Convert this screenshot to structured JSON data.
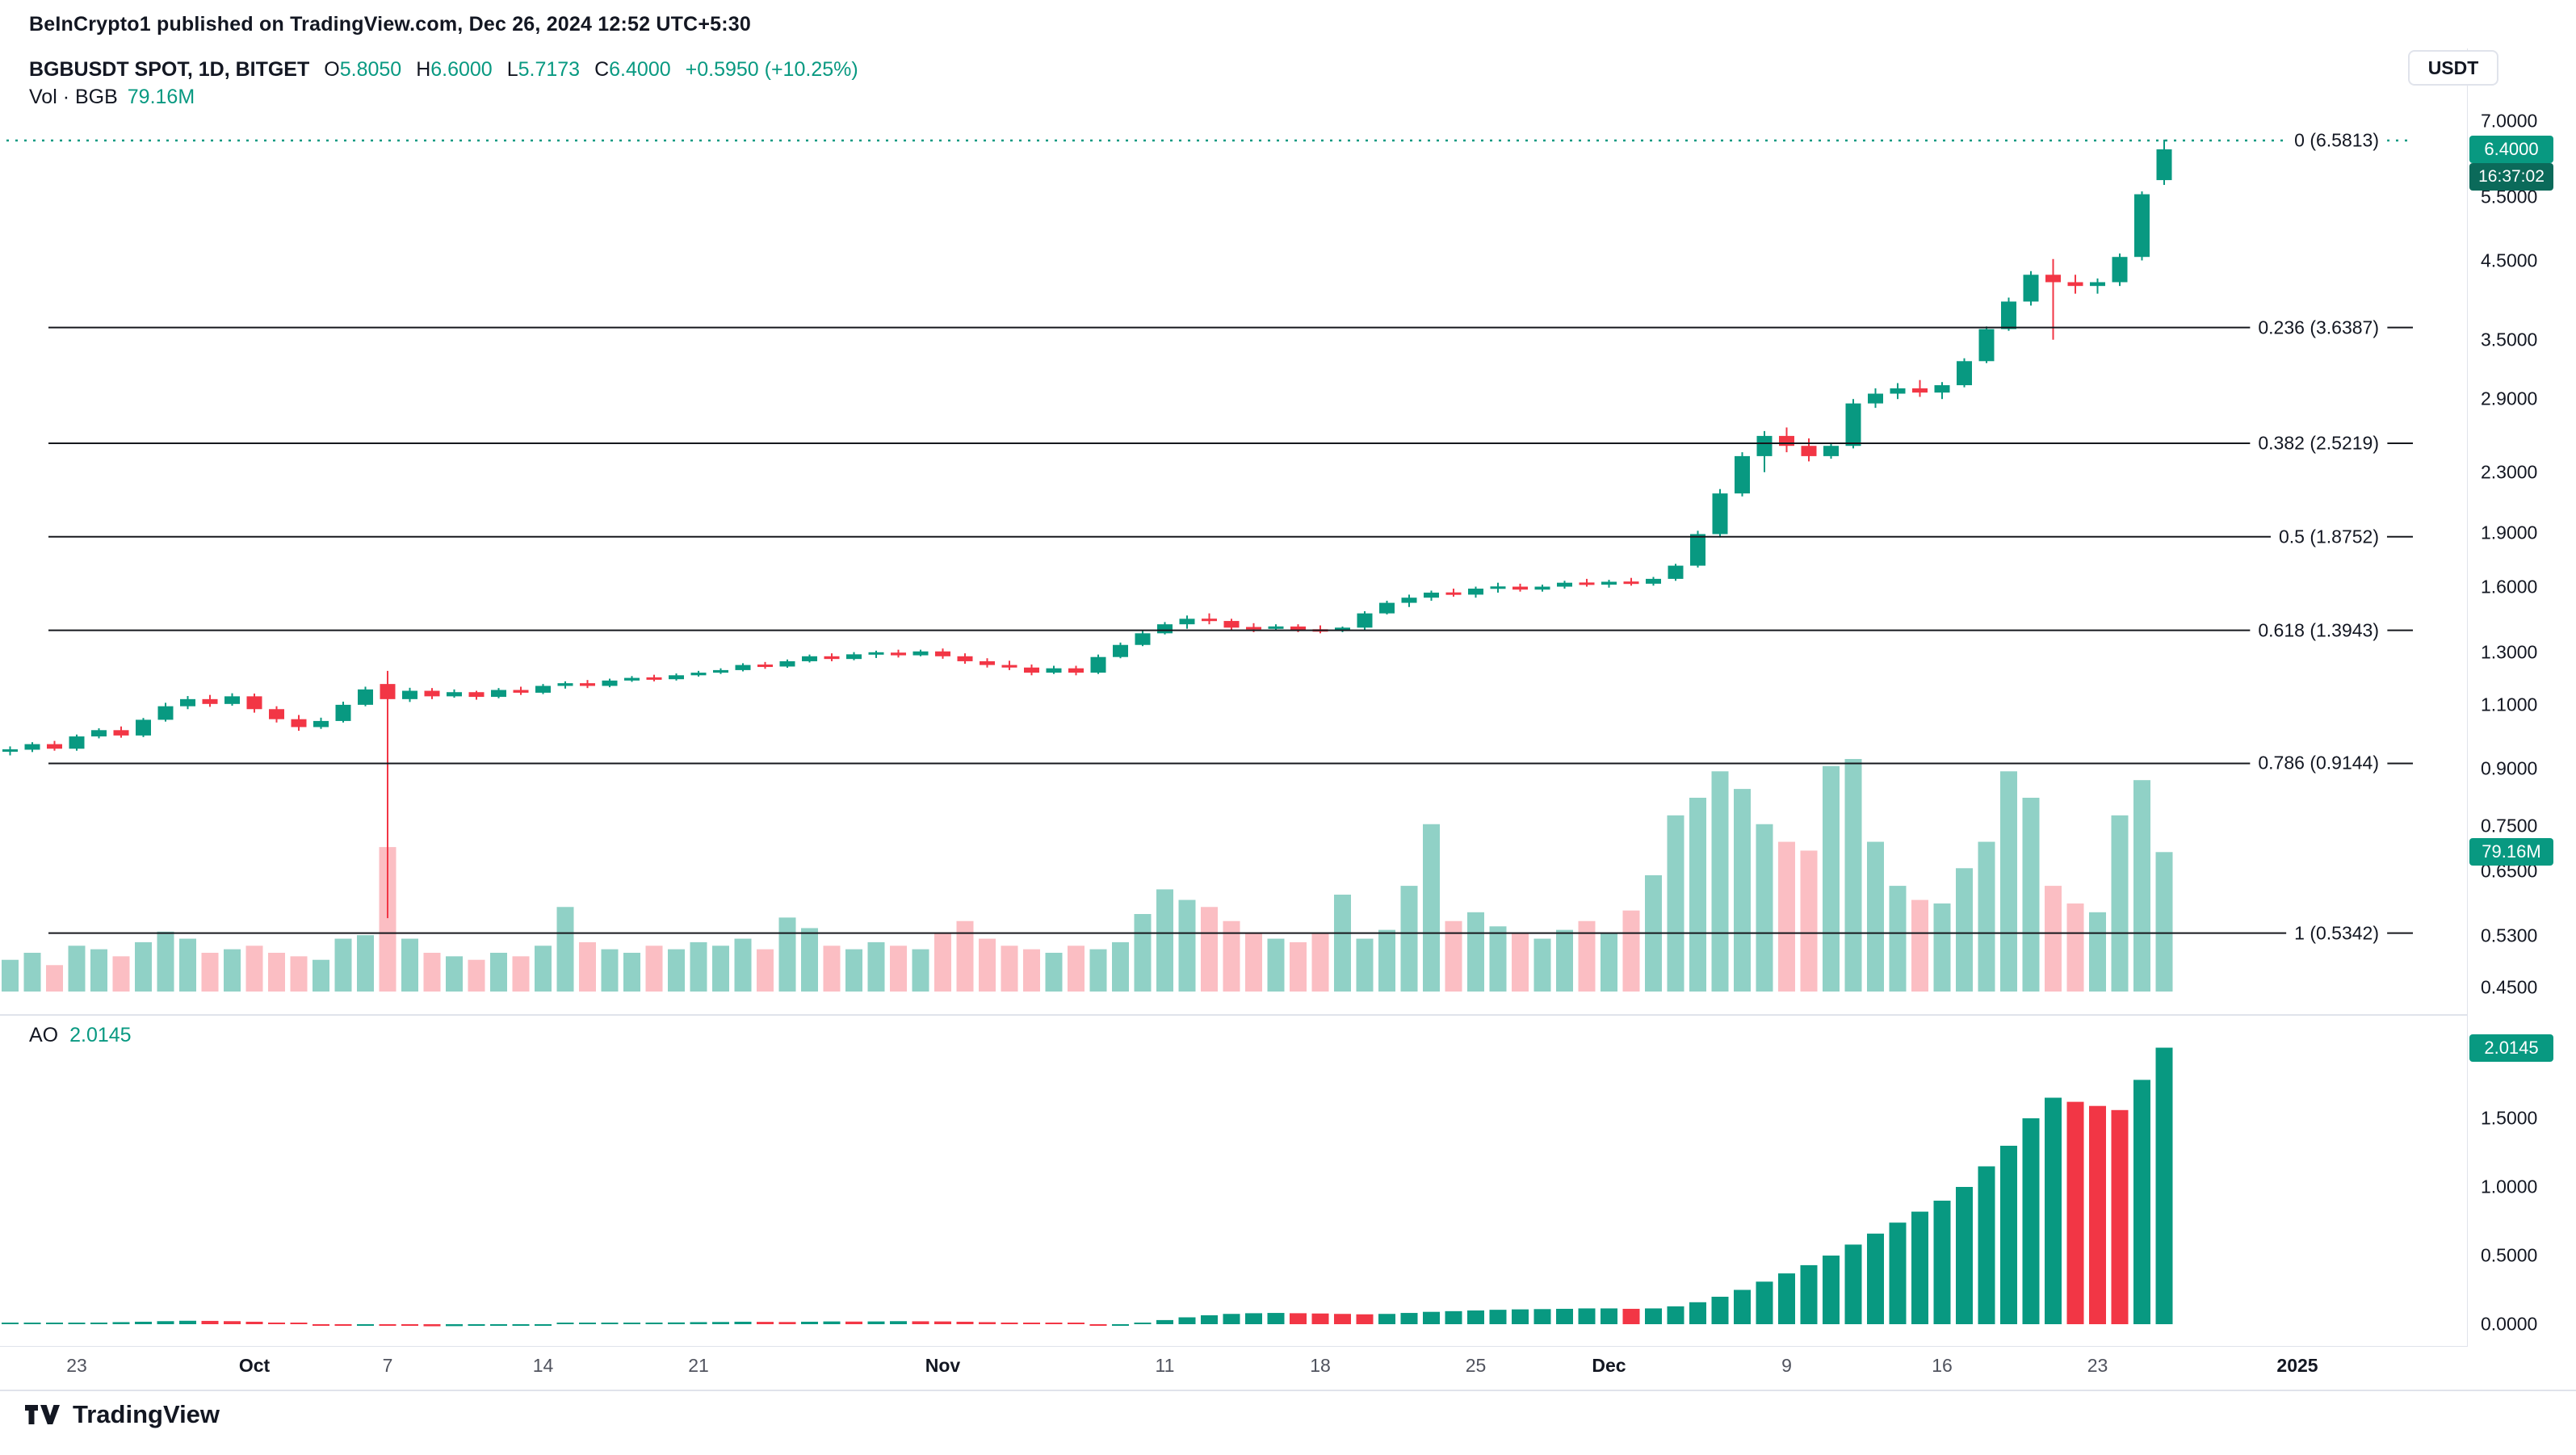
{
  "page": {
    "attribution": "BeInCrypto1 published on TradingView.com, Dec 26, 2024 12:52 UTC+5:30",
    "currency_button": "USDT",
    "footer_brand": "TradingView"
  },
  "legend": {
    "symbol_title": "BGBUSDT SPOT, 1D, BITGET",
    "ohlc": [
      {
        "label": "O",
        "value": "5.8050"
      },
      {
        "label": "H",
        "value": "6.6000"
      },
      {
        "label": "L",
        "value": "5.7173"
      },
      {
        "label": "C",
        "value": "6.4000"
      }
    ],
    "change": "+0.5950 (+10.25%)",
    "volume_label": "Vol · BGB",
    "volume_value": "79.16M",
    "ao_label": "AO",
    "ao_value": "2.0145"
  },
  "badges": {
    "last_price": "6.4000",
    "countdown": "16:37:02",
    "volume": "79.16M",
    "ao": "2.0145"
  },
  "colors": {
    "up": "#089981",
    "down": "#f23645",
    "volume_up": "rgba(8,153,129,0.45)",
    "volume_down": "rgba(242,54,69,0.32)",
    "fib_line": "#16181d",
    "countdown_bg": "#0b6a5a",
    "axis_text": "#131722",
    "separator": "#e0e3eb"
  },
  "chart_data": {
    "type": "candlestick",
    "symbol": "BGBUSDT",
    "market": "SPOT",
    "interval": "1D",
    "exchange": "BITGET",
    "price_scale": "log",
    "price_axis_range": [
      0.42,
      7.3
    ],
    "ao_axis_range": [
      -0.1,
      2.2
    ],
    "legend_position": "top-left",
    "grid": false,
    "candles": [
      [
        "2024-09-20",
        0.95,
        0.965,
        0.938,
        0.955
      ],
      [
        "2024-09-21",
        0.955,
        0.978,
        0.948,
        0.972
      ],
      [
        "2024-09-22",
        0.972,
        0.982,
        0.952,
        0.958
      ],
      [
        "2024-09-23",
        0.958,
        1.002,
        0.952,
        0.996
      ],
      [
        "2024-09-24",
        0.996,
        1.022,
        0.99,
        1.016
      ],
      [
        "2024-09-25",
        1.016,
        1.028,
        0.992,
        0.999
      ],
      [
        "2024-09-26",
        0.999,
        1.056,
        0.994,
        1.05
      ],
      [
        "2024-09-27",
        1.05,
        1.108,
        1.044,
        1.096
      ],
      [
        "2024-09-28",
        1.096,
        1.132,
        1.086,
        1.121
      ],
      [
        "2024-09-29",
        1.121,
        1.136,
        1.094,
        1.104
      ],
      [
        "2024-09-30",
        1.104,
        1.142,
        1.098,
        1.131
      ],
      [
        "2024-10-01",
        1.131,
        1.141,
        1.074,
        1.086
      ],
      [
        "2024-10-02",
        1.086,
        1.096,
        1.041,
        1.052
      ],
      [
        "2024-10-03",
        1.052,
        1.066,
        1.014,
        1.026
      ],
      [
        "2024-10-04",
        1.026,
        1.057,
        1.02,
        1.046
      ],
      [
        "2024-10-05",
        1.046,
        1.112,
        1.041,
        1.101
      ],
      [
        "2024-10-06",
        1.101,
        1.166,
        1.096,
        1.156
      ],
      [
        "2024-10-07",
        1.176,
        1.226,
        0.56,
        1.121
      ],
      [
        "2024-10-08",
        1.121,
        1.162,
        1.111,
        1.151
      ],
      [
        "2024-10-09",
        1.151,
        1.161,
        1.121,
        1.131
      ],
      [
        "2024-10-10",
        1.131,
        1.156,
        1.126,
        1.146
      ],
      [
        "2024-10-11",
        1.146,
        1.151,
        1.119,
        1.129
      ],
      [
        "2024-10-12",
        1.129,
        1.161,
        1.124,
        1.154
      ],
      [
        "2024-10-13",
        1.154,
        1.166,
        1.136,
        1.144
      ],
      [
        "2024-10-14",
        1.144,
        1.176,
        1.139,
        1.169
      ],
      [
        "2024-10-15",
        1.169,
        1.186,
        1.159,
        1.179
      ],
      [
        "2024-10-16",
        1.179,
        1.191,
        1.161,
        1.169
      ],
      [
        "2024-10-17",
        1.169,
        1.196,
        1.164,
        1.189
      ],
      [
        "2024-10-18",
        1.189,
        1.206,
        1.184,
        1.199
      ],
      [
        "2024-10-19",
        1.199,
        1.211,
        1.186,
        1.194
      ],
      [
        "2024-10-20",
        1.194,
        1.216,
        1.189,
        1.209
      ],
      [
        "2024-10-21",
        1.209,
        1.226,
        1.204,
        1.219
      ],
      [
        "2024-10-22",
        1.219,
        1.236,
        1.214,
        1.229
      ],
      [
        "2024-10-23",
        1.229,
        1.256,
        1.224,
        1.249
      ],
      [
        "2024-10-24",
        1.249,
        1.261,
        1.234,
        1.243
      ],
      [
        "2024-10-25",
        1.243,
        1.271,
        1.238,
        1.264
      ],
      [
        "2024-10-26",
        1.264,
        1.291,
        1.259,
        1.284
      ],
      [
        "2024-10-27",
        1.284,
        1.296,
        1.264,
        1.273
      ],
      [
        "2024-10-28",
        1.273,
        1.301,
        1.268,
        1.292
      ],
      [
        "2024-10-29",
        1.292,
        1.307,
        1.277,
        1.299
      ],
      [
        "2024-10-30",
        1.299,
        1.311,
        1.279,
        1.288
      ],
      [
        "2024-10-31",
        1.288,
        1.311,
        1.284,
        1.304
      ],
      [
        "2024-11-01",
        1.304,
        1.316,
        1.274,
        1.284
      ],
      [
        "2024-11-02",
        1.284,
        1.296,
        1.254,
        1.264
      ],
      [
        "2024-11-03",
        1.264,
        1.276,
        1.239,
        1.249
      ],
      [
        "2024-11-04",
        1.249,
        1.266,
        1.229,
        1.239
      ],
      [
        "2024-11-05",
        1.239,
        1.251,
        1.209,
        1.219
      ],
      [
        "2024-11-06",
        1.219,
        1.246,
        1.214,
        1.236
      ],
      [
        "2024-11-07",
        1.236,
        1.246,
        1.209,
        1.219
      ],
      [
        "2024-11-08",
        1.219,
        1.291,
        1.214,
        1.281
      ],
      [
        "2024-11-09",
        1.281,
        1.341,
        1.276,
        1.331
      ],
      [
        "2024-11-10",
        1.331,
        1.391,
        1.326,
        1.381
      ],
      [
        "2024-11-11",
        1.381,
        1.431,
        1.376,
        1.421
      ],
      [
        "2024-11-12",
        1.421,
        1.461,
        1.401,
        1.446
      ],
      [
        "2024-11-13",
        1.446,
        1.471,
        1.421,
        1.436
      ],
      [
        "2024-11-14",
        1.436,
        1.446,
        1.391,
        1.406
      ],
      [
        "2024-11-15",
        1.406,
        1.426,
        1.386,
        1.401
      ],
      [
        "2024-11-16",
        1.401,
        1.421,
        1.391,
        1.411
      ],
      [
        "2024-11-17",
        1.411,
        1.421,
        1.386,
        1.396
      ],
      [
        "2024-11-18",
        1.396,
        1.416,
        1.381,
        1.391
      ],
      [
        "2024-11-19",
        1.391,
        1.411,
        1.386,
        1.406
      ],
      [
        "2024-11-20",
        1.406,
        1.481,
        1.396,
        1.471
      ],
      [
        "2024-11-21",
        1.471,
        1.531,
        1.466,
        1.521
      ],
      [
        "2024-11-22",
        1.521,
        1.561,
        1.501,
        1.546
      ],
      [
        "2024-11-23",
        1.546,
        1.581,
        1.531,
        1.571
      ],
      [
        "2024-11-24",
        1.571,
        1.591,
        1.551,
        1.561
      ],
      [
        "2024-11-25",
        1.561,
        1.601,
        1.546,
        1.591
      ],
      [
        "2024-11-26",
        1.591,
        1.621,
        1.571,
        1.601
      ],
      [
        "2024-11-27",
        1.601,
        1.616,
        1.576,
        1.586
      ],
      [
        "2024-11-28",
        1.586,
        1.611,
        1.576,
        1.601
      ],
      [
        "2024-11-29",
        1.601,
        1.631,
        1.591,
        1.621
      ],
      [
        "2024-11-30",
        1.621,
        1.641,
        1.601,
        1.611
      ],
      [
        "2024-12-01",
        1.611,
        1.636,
        1.596,
        1.626
      ],
      [
        "2024-12-02",
        1.626,
        1.646,
        1.606,
        1.616
      ],
      [
        "2024-12-03",
        1.616,
        1.651,
        1.606,
        1.641
      ],
      [
        "2024-12-04",
        1.641,
        1.721,
        1.631,
        1.711
      ],
      [
        "2024-12-05",
        1.711,
        1.911,
        1.701,
        1.891
      ],
      [
        "2024-12-06",
        1.891,
        2.181,
        1.871,
        2.151
      ],
      [
        "2024-12-07",
        2.151,
        2.451,
        2.131,
        2.421
      ],
      [
        "2024-12-08",
        2.421,
        2.621,
        2.301,
        2.581
      ],
      [
        "2024-12-09",
        2.581,
        2.651,
        2.451,
        2.501
      ],
      [
        "2024-12-10",
        2.501,
        2.561,
        2.381,
        2.421
      ],
      [
        "2024-12-11",
        2.421,
        2.521,
        2.401,
        2.501
      ],
      [
        "2024-12-12",
        2.501,
        2.901,
        2.481,
        2.861
      ],
      [
        "2024-12-13",
        2.861,
        3.001,
        2.821,
        2.951
      ],
      [
        "2024-12-14",
        2.951,
        3.051,
        2.901,
        3.001
      ],
      [
        "2024-12-15",
        3.001,
        3.081,
        2.921,
        2.961
      ],
      [
        "2024-12-16",
        2.961,
        3.061,
        2.901,
        3.031
      ],
      [
        "2024-12-17",
        3.031,
        3.301,
        3.011,
        3.271
      ],
      [
        "2024-12-18",
        3.271,
        3.651,
        3.251,
        3.621
      ],
      [
        "2024-12-19",
        3.621,
        4.001,
        3.601,
        3.951
      ],
      [
        "2024-12-20",
        3.951,
        4.351,
        3.901,
        4.301
      ],
      [
        "2024-12-21",
        4.301,
        4.521,
        3.501,
        4.201
      ],
      [
        "2024-12-22",
        4.201,
        4.301,
        4.051,
        4.151
      ],
      [
        "2024-12-23",
        4.151,
        4.251,
        4.051,
        4.201
      ],
      [
        "2024-12-24",
        4.201,
        4.601,
        4.151,
        4.551
      ],
      [
        "2024-12-25",
        4.551,
        5.601,
        4.501,
        5.551
      ],
      [
        "2024-12-26",
        5.805,
        6.6,
        5.7173,
        6.4
      ]
    ],
    "volume_m": [
      18,
      22,
      15,
      26,
      24,
      20,
      28,
      34,
      30,
      22,
      24,
      26,
      22,
      20,
      18,
      30,
      32,
      82,
      30,
      22,
      20,
      18,
      22,
      20,
      26,
      48,
      28,
      24,
      22,
      26,
      24,
      28,
      26,
      30,
      24,
      42,
      36,
      26,
      24,
      28,
      26,
      24,
      33,
      40,
      30,
      26,
      24,
      22,
      26,
      24,
      28,
      44,
      58,
      52,
      48,
      40,
      33,
      30,
      28,
      33,
      55,
      30,
      35,
      60,
      95,
      40,
      45,
      37,
      33,
      30,
      35,
      40,
      33,
      46,
      66,
      100,
      110,
      125,
      115,
      95,
      85,
      80,
      128,
      132,
      85,
      60,
      52,
      50,
      70,
      85,
      125,
      110,
      60,
      50,
      45,
      100,
      120,
      79.16
    ],
    "ao": [
      0.002,
      0.004,
      0.005,
      0.008,
      0.012,
      0.015,
      0.018,
      0.022,
      0.025,
      0.024,
      0.022,
      0.018,
      0.012,
      0.005,
      -0.002,
      -0.006,
      -0.004,
      -0.008,
      -0.012,
      -0.015,
      -0.014,
      -0.012,
      -0.01,
      -0.008,
      -0.005,
      0.0,
      0.004,
      0.008,
      0.01,
      0.012,
      0.013,
      0.015,
      0.016,
      0.018,
      0.017,
      0.016,
      0.018,
      0.02,
      0.019,
      0.02,
      0.022,
      0.021,
      0.02,
      0.018,
      0.015,
      0.012,
      0.008,
      0.004,
      0.0,
      -0.004,
      -0.002,
      0.01,
      0.03,
      0.05,
      0.065,
      0.075,
      0.08,
      0.082,
      0.08,
      0.078,
      0.075,
      0.072,
      0.075,
      0.082,
      0.09,
      0.095,
      0.1,
      0.105,
      0.108,
      0.11,
      0.112,
      0.115,
      0.115,
      0.112,
      0.115,
      0.13,
      0.16,
      0.2,
      0.25,
      0.31,
      0.37,
      0.43,
      0.5,
      0.58,
      0.66,
      0.74,
      0.82,
      0.9,
      1.0,
      1.15,
      1.3,
      1.5,
      1.65,
      1.62,
      1.59,
      1.56,
      1.78,
      2.0145
    ],
    "fib_levels": [
      {
        "label": "0 (6.5813)",
        "value": 6.5813,
        "style": "dotted"
      },
      {
        "label": "0.236 (3.6387)",
        "value": 3.6387,
        "style": "solid"
      },
      {
        "label": "0.382 (2.5219)",
        "value": 2.5219,
        "style": "solid"
      },
      {
        "label": "0.5 (1.8752)",
        "value": 1.8752,
        "style": "solid"
      },
      {
        "label": "0.618 (1.3943)",
        "value": 1.3943,
        "style": "solid"
      },
      {
        "label": "0.786 (0.9144)",
        "value": 0.9144,
        "style": "solid"
      },
      {
        "label": "1 (0.5342)",
        "value": 0.5342,
        "style": "solid"
      }
    ],
    "price_axis_ticks": [
      {
        "label": "7.0000",
        "value": 7.0
      },
      {
        "label": "5.5000",
        "value": 5.5
      },
      {
        "label": "4.5000",
        "value": 4.5
      },
      {
        "label": "3.5000",
        "value": 3.5
      },
      {
        "label": "2.9000",
        "value": 2.9
      },
      {
        "label": "2.3000",
        "value": 2.3
      },
      {
        "label": "1.9000",
        "value": 1.9
      },
      {
        "label": "1.6000",
        "value": 1.6
      },
      {
        "label": "1.3000",
        "value": 1.3
      },
      {
        "label": "1.1000",
        "value": 1.1
      },
      {
        "label": "0.9000",
        "value": 0.9
      },
      {
        "label": "0.7500",
        "value": 0.75
      },
      {
        "label": "0.6500",
        "value": 0.65
      },
      {
        "label": "0.5300",
        "value": 0.53
      },
      {
        "label": "0.4500",
        "value": 0.45
      }
    ],
    "ao_axis_ticks": [
      {
        "label": "1.5000",
        "value": 1.5
      },
      {
        "label": "1.0000",
        "value": 1.0
      },
      {
        "label": "0.5000",
        "value": 0.5
      },
      {
        "label": "0.0000",
        "value": 0.0
      }
    ],
    "time_axis_ticks": [
      {
        "label": "23",
        "index": 3,
        "major": false
      },
      {
        "label": "Oct",
        "index": 11,
        "major": true
      },
      {
        "label": "7",
        "index": 17,
        "major": false
      },
      {
        "label": "14",
        "index": 24,
        "major": false
      },
      {
        "label": "21",
        "index": 31,
        "major": false
      },
      {
        "label": "Nov",
        "index": 42,
        "major": true
      },
      {
        "label": "11",
        "index": 52,
        "major": false
      },
      {
        "label": "18",
        "index": 59,
        "major": false
      },
      {
        "label": "25",
        "index": 66,
        "major": false
      },
      {
        "label": "Dec",
        "index": 72,
        "major": true
      },
      {
        "label": "9",
        "index": 80,
        "major": false
      },
      {
        "label": "16",
        "index": 87,
        "major": false
      },
      {
        "label": "23",
        "index": 94,
        "major": false
      },
      {
        "label": "2025",
        "index": 103,
        "major": true
      }
    ]
  }
}
